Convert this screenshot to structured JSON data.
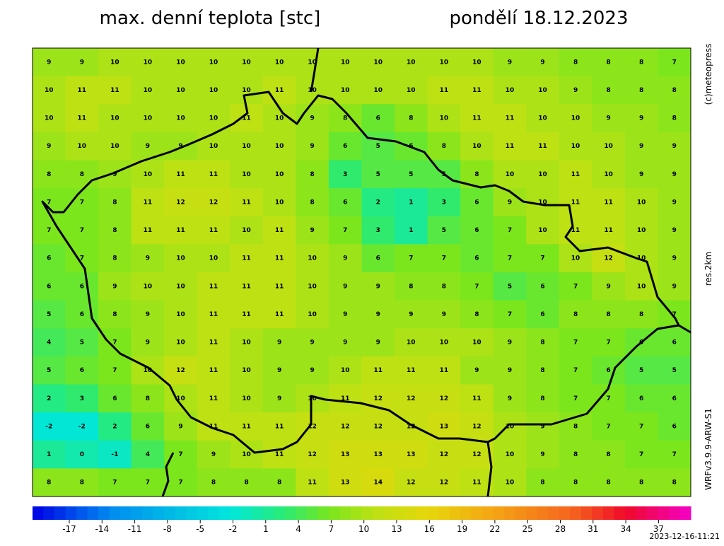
{
  "header": {
    "title": "max. denní teplota [stc]",
    "date": "pondělí 18.12.2023"
  },
  "side": {
    "copyright": "(c)meteopress",
    "resolution": "res.2km",
    "model": "WRFv3.9.9-ARW-S1"
  },
  "map": {
    "grid": [
      [
        9,
        9,
        10,
        10,
        10,
        10,
        10,
        10,
        10,
        10,
        10,
        10,
        10,
        10,
        9,
        9,
        8,
        8,
        8,
        7
      ],
      [
        10,
        11,
        11,
        10,
        10,
        10,
        10,
        11,
        10,
        10,
        10,
        10,
        11,
        11,
        10,
        10,
        9,
        8,
        8,
        8
      ],
      [
        10,
        11,
        10,
        10,
        10,
        10,
        11,
        10,
        9,
        8,
        6,
        8,
        10,
        11,
        11,
        10,
        10,
        9,
        9,
        8
      ],
      [
        9,
        10,
        10,
        9,
        9,
        10,
        10,
        10,
        9,
        6,
        5,
        6,
        8,
        10,
        11,
        11,
        10,
        10,
        9,
        9
      ],
      [
        8,
        8,
        9,
        10,
        11,
        11,
        10,
        10,
        8,
        3,
        5,
        5,
        5,
        8,
        10,
        10,
        11,
        10,
        9,
        9
      ],
      [
        7,
        7,
        8,
        11,
        12,
        12,
        11,
        10,
        8,
        6,
        2,
        1,
        3,
        6,
        9,
        10,
        11,
        11,
        10,
        9
      ],
      [
        7,
        7,
        8,
        11,
        11,
        11,
        10,
        11,
        9,
        7,
        3,
        1,
        5,
        6,
        7,
        10,
        11,
        11,
        10,
        9
      ],
      [
        6,
        7,
        8,
        9,
        10,
        10,
        11,
        11,
        10,
        9,
        6,
        7,
        7,
        6,
        7,
        7,
        10,
        12,
        10,
        9
      ],
      [
        6,
        6,
        9,
        10,
        10,
        11,
        11,
        11,
        10,
        9,
        9,
        8,
        8,
        7,
        5,
        6,
        7,
        9,
        10,
        9
      ],
      [
        5,
        6,
        8,
        9,
        10,
        11,
        11,
        11,
        10,
        9,
        9,
        9,
        9,
        8,
        7,
        6,
        8,
        8,
        8,
        7
      ],
      [
        4,
        5,
        7,
        9,
        10,
        11,
        10,
        9,
        9,
        9,
        9,
        10,
        10,
        10,
        9,
        8,
        7,
        7,
        6,
        6
      ],
      [
        5,
        6,
        7,
        10,
        12,
        11,
        10,
        9,
        9,
        10,
        11,
        11,
        11,
        9,
        9,
        8,
        7,
        6,
        5,
        5
      ],
      [
        2,
        3,
        6,
        8,
        10,
        11,
        10,
        9,
        10,
        11,
        12,
        12,
        12,
        11,
        9,
        8,
        7,
        7,
        6,
        6
      ],
      [
        -2,
        -2,
        2,
        6,
        9,
        11,
        11,
        11,
        12,
        12,
        12,
        12,
        13,
        12,
        10,
        9,
        8,
        7,
        7,
        6
      ],
      [
        1,
        0,
        -1,
        4,
        7,
        9,
        10,
        11,
        12,
        13,
        13,
        13,
        12,
        12,
        10,
        9,
        8,
        8,
        7,
        7
      ],
      [
        8,
        8,
        7,
        7,
        7,
        8,
        8,
        8,
        11,
        13,
        14,
        12,
        12,
        11,
        10,
        8,
        8,
        8,
        8,
        8
      ]
    ]
  },
  "colorbar": {
    "ticks": [
      -17,
      -14,
      -11,
      -8,
      -5,
      -2,
      1,
      4,
      7,
      10,
      13,
      16,
      19,
      22,
      25,
      28,
      31,
      34,
      37
    ]
  },
  "footer": {
    "timestamp": "2023-12-16-11:21"
  }
}
